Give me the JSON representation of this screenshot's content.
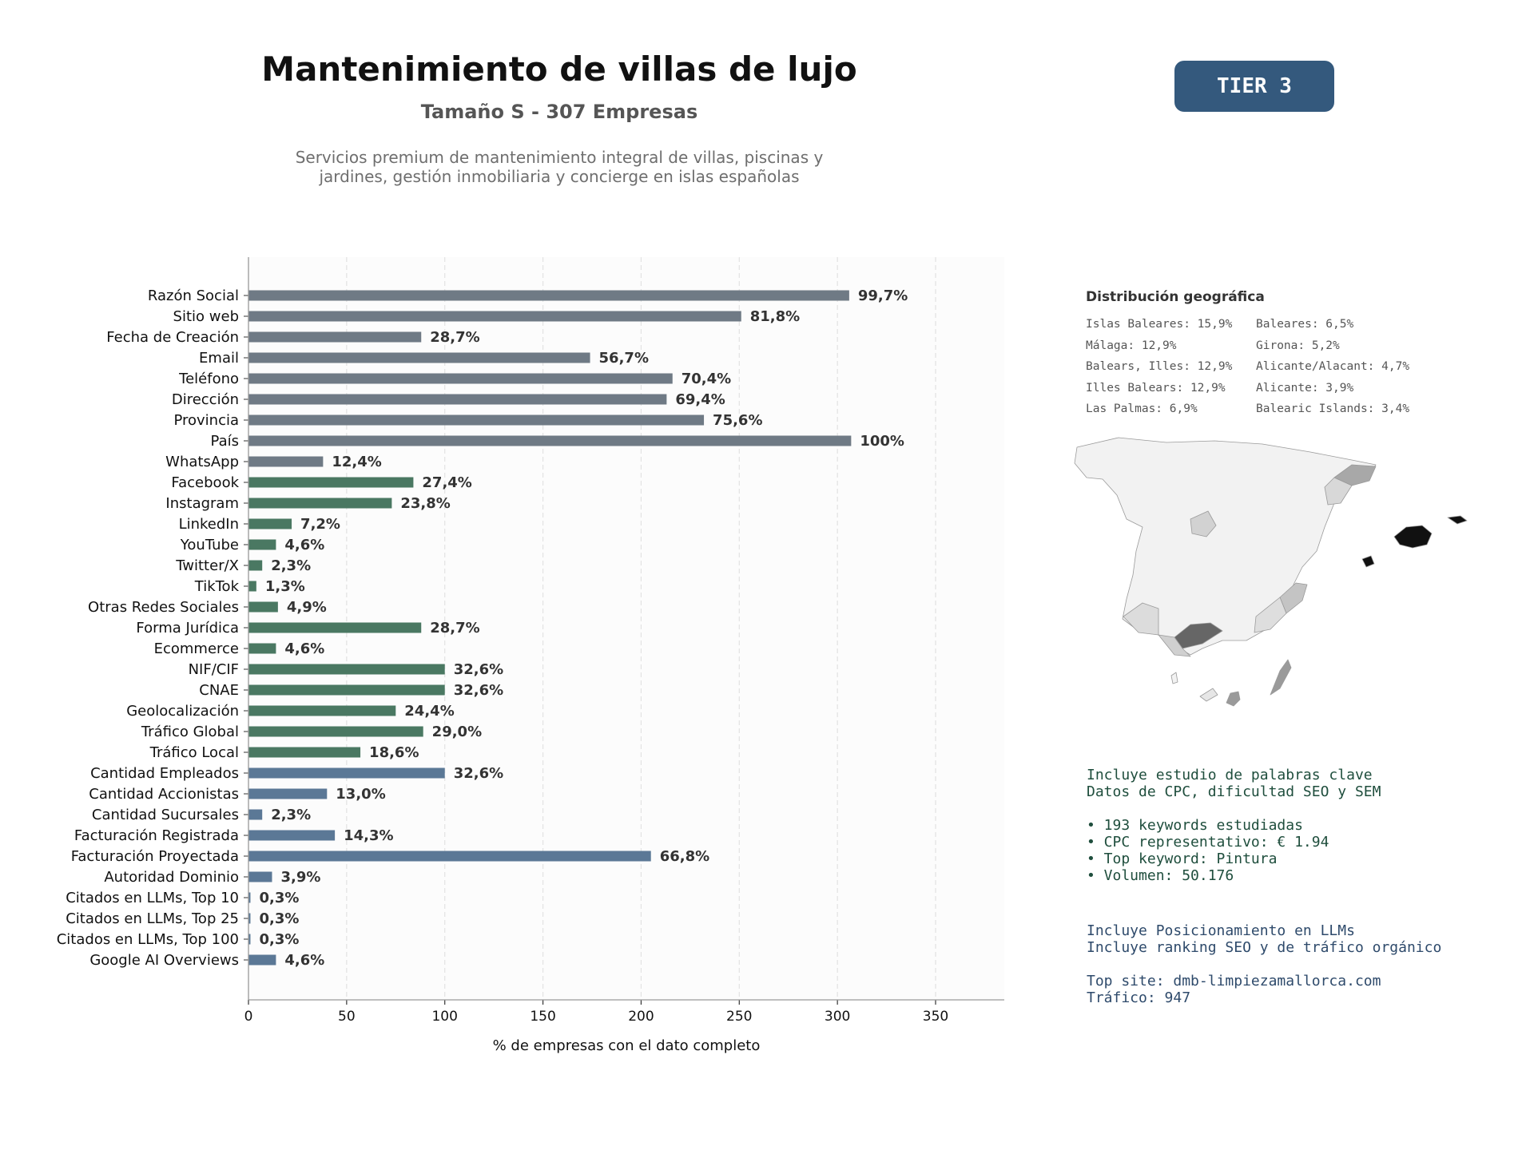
{
  "header": {
    "title": "Mantenimiento de villas de lujo",
    "subtitle": "Tamaño S - 307 Empresas",
    "description_line1": "Servicios premium de mantenimiento integral de villas, piscinas y",
    "description_line2": "jardines, gestión inmobiliaria y concierge en islas españolas",
    "tier_label": "TIER 3",
    "tier_color": "#34597d"
  },
  "chart_data": {
    "type": "bar",
    "orientation": "horizontal",
    "xlabel": "% de empresas con el dato completo",
    "xlim": [
      0,
      385
    ],
    "xticks": [
      0,
      50,
      100,
      150,
      200,
      250,
      300,
      350
    ],
    "grid": "x-dashed",
    "categories": [
      "Razón Social",
      "Sitio web",
      "Fecha de Creación",
      "Email",
      "Teléfono",
      "Dirección",
      "Provincia",
      "País",
      "WhatsApp",
      "Facebook",
      "Instagram",
      "LinkedIn",
      "YouTube",
      "Twitter/X",
      "TikTok",
      "Otras Redes Sociales",
      "Forma Jurídica",
      "Ecommerce",
      "NIF/CIF",
      "CNAE",
      "Geolocalización",
      "Tráfico Global",
      "Tráfico Local",
      "Cantidad Empleados",
      "Cantidad Accionistas",
      "Cantidad Sucursales",
      "Facturación Registrada",
      "Facturación Proyectada",
      "Autoridad Dominio",
      "Citados en LLMs, Top 10",
      "Citados en LLMs, Top 25",
      "Citados en LLMs, Top 100",
      "Google AI Overviews"
    ],
    "values": [
      306,
      251,
      88,
      174,
      216,
      213,
      232,
      307,
      38,
      84,
      73,
      22,
      14,
      7,
      4,
      15,
      88,
      14,
      100,
      100,
      75,
      89,
      57,
      100,
      40,
      7,
      44,
      205,
      12,
      1,
      1,
      1,
      14
    ],
    "value_labels": [
      "99,7%",
      "81,8%",
      "28,7%",
      "56,7%",
      "70,4%",
      "69,4%",
      "75,6%",
      "100%",
      "12,4%",
      "27,4%",
      "23,8%",
      "7,2%",
      "4,6%",
      "2,3%",
      "1,3%",
      "4,9%",
      "28,7%",
      "4,6%",
      "32,6%",
      "32,6%",
      "24,4%",
      "29,0%",
      "18,6%",
      "32,6%",
      "13,0%",
      "2,3%",
      "14,3%",
      "66,8%",
      "3,9%",
      "0,3%",
      "0,3%",
      "0,3%",
      "4,6%"
    ],
    "groups": [
      0,
      0,
      0,
      0,
      0,
      0,
      0,
      0,
      0,
      1,
      1,
      1,
      1,
      1,
      1,
      1,
      1,
      1,
      1,
      1,
      1,
      1,
      1,
      2,
      2,
      2,
      2,
      2,
      2,
      2,
      2,
      2,
      2
    ],
    "group_colors": [
      "#6f7a85",
      "#4a7862",
      "#5b7896"
    ]
  },
  "geo": {
    "title": "Distribución geográfica",
    "left_column": [
      "Islas Baleares: 15,9%",
      "Málaga: 12,9%",
      "Balears, Illes: 12,9%",
      "Illes Balears: 12,9%",
      "Las Palmas: 6,9%"
    ],
    "right_column": [
      "Baleares: 6,5%",
      "Girona: 5,2%",
      "Alicante/Alacant: 4,7%",
      "Alicante: 3,9%",
      "Balearic Islands: 3,4%"
    ]
  },
  "keywords": {
    "line1": "Incluye estudio de palabras clave",
    "line2": "Datos de CPC, dificultad SEO y SEM",
    "bullets": [
      "• 193 keywords estudiadas",
      "• CPC representativo: € 1.94",
      "• Top keyword: Pintura",
      "• Volumen: 50.176"
    ]
  },
  "llm": {
    "line1": "Incluye Posicionamiento en LLMs",
    "line2": "Incluye ranking SEO y de tráfico orgánico",
    "top_site": "Top site: dmb-limpiezamallorca.com",
    "traffic": "Tráfico: 947"
  }
}
